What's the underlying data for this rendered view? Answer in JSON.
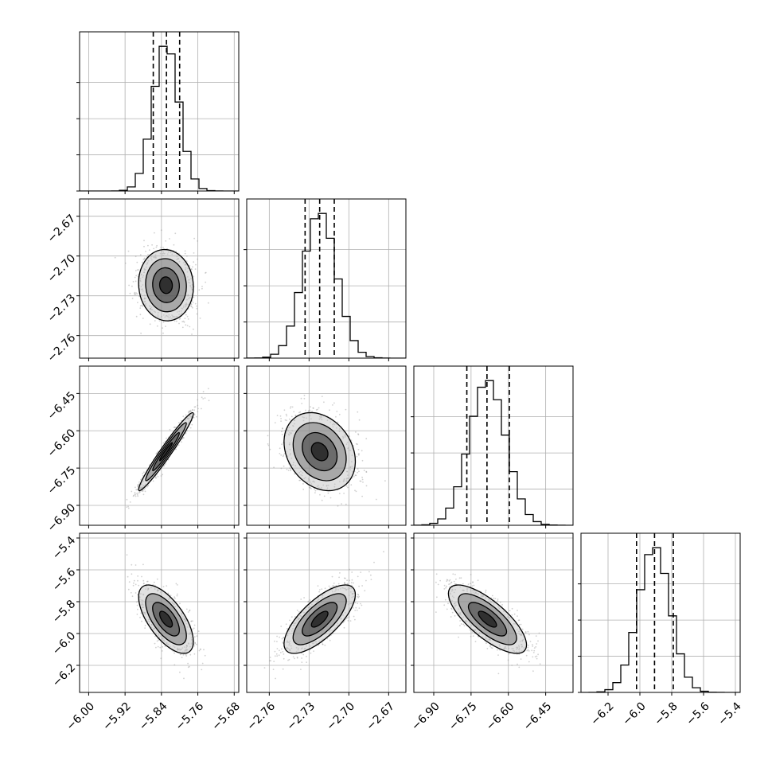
{
  "chart_data": {
    "type": "corner",
    "parameters": [
      {
        "mean": -5.83,
        "sd": 0.028,
        "range": [
          -6.02,
          -5.67
        ],
        "ticks": [
          -6.0,
          -5.92,
          -5.84,
          -5.76,
          -5.68
        ],
        "tick_labels": [
          "−6.00",
          "−5.92",
          "−5.84",
          "−5.76",
          "−5.68"
        ],
        "quantiles": [
          -5.858,
          -5.829,
          -5.8
        ]
      },
      {
        "mean": -2.722,
        "sd": 0.0125,
        "range": [
          -2.777,
          -2.657
        ],
        "ticks": [
          -2.76,
          -2.73,
          -2.7,
          -2.67
        ],
        "tick_labels": [
          "−2.76",
          "−2.73",
          "−2.70",
          "−2.67"
        ],
        "quantiles": [
          -2.733,
          -2.722,
          -2.711
        ]
      },
      {
        "mean": -6.684,
        "sd": 0.073,
        "range": [
          -6.98,
          -6.34
        ],
        "ticks": [
          -6.9,
          -6.75,
          -6.6,
          -6.45
        ],
        "tick_labels": [
          "−6.90",
          "−6.75",
          "−6.60",
          "−6.45"
        ],
        "quantiles": [
          -6.767,
          -6.686,
          -6.596
        ]
      },
      {
        "mean": -5.91,
        "sd": 0.1,
        "range": [
          -6.37,
          -5.37
        ],
        "ticks": [
          -6.2,
          -6.0,
          -5.8,
          -5.6,
          -5.4
        ],
        "tick_labels": [
          "−6.2",
          "−6.0",
          "−5.8",
          "−5.6",
          "−5.4"
        ],
        "quantiles": [
          -6.021,
          -5.908,
          -5.79
        ]
      }
    ],
    "correlations": [
      [
        1.0,
        -0.05,
        0.97,
        -0.65
      ],
      [
        -0.05,
        1.0,
        -0.25,
        0.72
      ],
      [
        0.97,
        -0.25,
        1.0,
        -0.75
      ],
      [
        -0.65,
        0.72,
        -0.75,
        1.0
      ]
    ],
    "colors": {
      "line": "#000000",
      "scatter": "#9a9a9a",
      "grid": "#b0b0b0",
      "contour_fill": [
        "#bdbdbd",
        "#7a7a7a",
        "#3a3a3a",
        "#000000"
      ]
    },
    "grid": true
  }
}
